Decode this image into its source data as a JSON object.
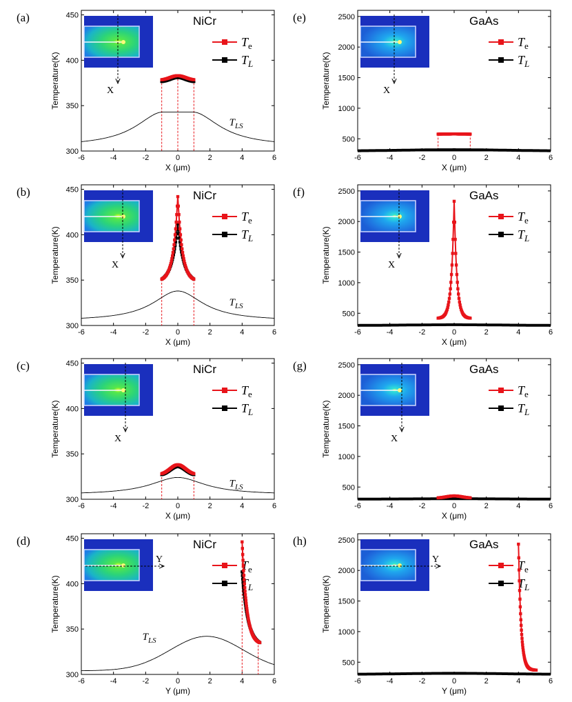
{
  "x_unit_label": "X (μm)",
  "y_unit_label": "Y (μm)",
  "ylabel": "Temperature(K)",
  "legend": {
    "te": "T",
    "te_sub": "e",
    "tl": "T",
    "tl_sub": "L"
  },
  "tls": {
    "main": "T",
    "sub": "LS"
  },
  "colors": {
    "te": "#e8141a",
    "tl": "#000000",
    "tls": "#000000",
    "guide": "#e8141a"
  },
  "chart_data": [
    {
      "panel": "(a)",
      "material": "NiCr",
      "type": "line",
      "xlabel": "X (μm)",
      "ylabel": "Temperature(K)",
      "xlim": [
        -6,
        6
      ],
      "ylim": [
        300,
        455
      ],
      "xticks": [
        -6,
        -4,
        -2,
        0,
        2,
        4,
        6
      ],
      "yticks": [
        300,
        350,
        400,
        450
      ],
      "inset_axis": "X",
      "inset_axis_vertical": true,
      "inset_scheme": "nicr",
      "inset_cut": -0.4,
      "guides": [
        -1,
        0,
        1
      ],
      "tls": {
        "type": "bell",
        "base": 305,
        "peak": 343,
        "flat": 0.9,
        "width": 2.6,
        "label_x": 3.2,
        "label_y": 328
      },
      "series": [
        {
          "name": "Te",
          "shape": "bump",
          "x0": -1,
          "x1": 1,
          "base": 378,
          "peak": 383
        },
        {
          "name": "TL",
          "shape": "bump",
          "x0": -1,
          "x1": 1,
          "base": 376,
          "peak": 381
        }
      ]
    },
    {
      "panel": "(b)",
      "material": "NiCr",
      "type": "line",
      "xlabel": "X (μm)",
      "ylabel": "Temperature(K)",
      "xlim": [
        -6,
        6
      ],
      "ylim": [
        300,
        455
      ],
      "xticks": [
        -6,
        -4,
        -2,
        0,
        2,
        4,
        6
      ],
      "yticks": [
        300,
        350,
        400,
        450
      ],
      "inset_axis": "X",
      "inset_axis_vertical": true,
      "inset_scheme": "nicr",
      "inset_cut": -0.05,
      "guides": [
        -1,
        1
      ],
      "tls": {
        "type": "bell",
        "base": 305,
        "peak": 338,
        "flat": 0,
        "width": 2.4,
        "label_x": 3.2,
        "label_y": 322
      },
      "series": [
        {
          "name": "Te",
          "shape": "cusp",
          "x0": -1,
          "x1": 1,
          "base": 351,
          "peak": 442,
          "decay": 0.28
        },
        {
          "name": "TL",
          "shape": "cusp",
          "x0": -1,
          "x1": 1,
          "base": 351,
          "peak": 412,
          "decay": 0.36
        }
      ]
    },
    {
      "panel": "(c)",
      "material": "NiCr",
      "type": "line",
      "xlabel": "X (μm)",
      "ylabel": "Temperature(K)",
      "xlim": [
        -6,
        6
      ],
      "ylim": [
        300,
        455
      ],
      "xticks": [
        -6,
        -4,
        -2,
        0,
        2,
        4,
        6
      ],
      "yticks": [
        300,
        350,
        400,
        450
      ],
      "inset_axis": "X",
      "inset_axis_vertical": true,
      "inset_scheme": "nicr",
      "inset_cut": 0.15,
      "guides": [
        -1,
        1
      ],
      "tls": {
        "type": "bell",
        "base": 305,
        "peak": 324,
        "flat": 0,
        "width": 2.6,
        "label_x": 3.2,
        "label_y": 314
      },
      "series": [
        {
          "name": "Te",
          "shape": "bump",
          "x0": -1,
          "x1": 1,
          "base": 327,
          "peak": 338
        },
        {
          "name": "TL",
          "shape": "bump",
          "x0": -1,
          "x1": 1,
          "base": 326,
          "peak": 336
        }
      ]
    },
    {
      "panel": "(d)",
      "material": "NiCr",
      "type": "line",
      "xlabel": "Y (μm)",
      "ylabel": "Temperature(K)",
      "xlim": [
        -6,
        6
      ],
      "ylim": [
        300,
        455
      ],
      "xticks": [
        -6,
        -4,
        -2,
        0,
        2,
        4,
        6
      ],
      "yticks": [
        300,
        350,
        400,
        450
      ],
      "inset_axis": "Y",
      "inset_axis_vertical": false,
      "inset_scheme": "nicr",
      "inset_cut": 0,
      "guides": [
        4,
        5
      ],
      "tls": {
        "type": "plateau",
        "base": 304,
        "peak": 342,
        "center": 1.8,
        "width": 3.2,
        "label_x": -2.2,
        "label_y": 338
      },
      "series": [
        {
          "name": "Te",
          "shape": "decay",
          "x0": 4,
          "x1": 5.1,
          "base": 335,
          "peak": 446,
          "decay": 0.28
        },
        {
          "name": "TL",
          "shape": "decay",
          "x0": 4,
          "x1": 5.1,
          "base": 335,
          "peak": 413,
          "decay": 0.36
        }
      ]
    },
    {
      "panel": "(e)",
      "material": "GaAs",
      "type": "line",
      "xlabel": "X (μm)",
      "ylabel": "Temperature(K)",
      "xlim": [
        -6,
        6
      ],
      "ylim": [
        300,
        2600
      ],
      "xticks": [
        -6,
        -4,
        -2,
        0,
        2,
        4,
        6
      ],
      "yticks": [
        500,
        1000,
        1500,
        2000,
        2500
      ],
      "inset_axis": "X",
      "inset_axis_vertical": true,
      "inset_scheme": "gaas",
      "inset_cut": -0.4,
      "guides": [
        -1,
        1
      ],
      "tls": null,
      "series": [
        {
          "name": "Te",
          "shape": "flat",
          "x0": -1,
          "x1": 1,
          "base": 575,
          "peak": 578
        },
        {
          "name": "TL",
          "shape": "wide",
          "x0": -6,
          "x1": 6,
          "base": 302,
          "peak": 322
        }
      ]
    },
    {
      "panel": "(f)",
      "material": "GaAs",
      "type": "line",
      "xlabel": "X (μm)",
      "ylabel": "Temperature(K)",
      "xlim": [
        -6,
        6
      ],
      "ylim": [
        300,
        2600
      ],
      "xticks": [
        -6,
        -4,
        -2,
        0,
        2,
        4,
        6
      ],
      "yticks": [
        500,
        1000,
        1500,
        2000,
        2500
      ],
      "inset_axis": "X",
      "inset_axis_vertical": true,
      "inset_scheme": "gaas",
      "inset_cut": -0.05,
      "guides": [],
      "tls": null,
      "series": [
        {
          "name": "Te",
          "shape": "cusp",
          "x0": -1,
          "x1": 1,
          "base": 420,
          "peak": 2330,
          "decay": 0.17
        },
        {
          "name": "TL",
          "shape": "wide",
          "x0": -6,
          "x1": 6,
          "base": 300,
          "peak": 312
        }
      ]
    },
    {
      "panel": "(g)",
      "material": "GaAs",
      "type": "line",
      "xlabel": "X (μm)",
      "ylabel": "Temperature(K)",
      "xlim": [
        -6,
        6
      ],
      "ylim": [
        300,
        2600
      ],
      "xticks": [
        -6,
        -4,
        -2,
        0,
        2,
        4,
        6
      ],
      "yticks": [
        500,
        1000,
        1500,
        2000,
        2500
      ],
      "inset_axis": "X",
      "inset_axis_vertical": true,
      "inset_scheme": "gaas",
      "inset_cut": 0.15,
      "guides": [],
      "tls": null,
      "series": [
        {
          "name": "Te",
          "shape": "bump",
          "x0": -1,
          "x1": 1,
          "base": 320,
          "peak": 355
        },
        {
          "name": "TL",
          "shape": "wide",
          "x0": -6,
          "x1": 6,
          "base": 302,
          "peak": 308
        }
      ]
    },
    {
      "panel": "(h)",
      "material": "GaAs",
      "type": "line",
      "xlabel": "Y (μm)",
      "ylabel": "Temperature(K)",
      "xlim": [
        -6,
        6
      ],
      "ylim": [
        300,
        2600
      ],
      "xticks": [
        -6,
        -4,
        -2,
        0,
        2,
        4,
        6
      ],
      "yticks": [
        500,
        1000,
        1500,
        2000,
        2500
      ],
      "inset_axis": "Y",
      "inset_axis_vertical": false,
      "inset_scheme": "gaas",
      "inset_cut": 0,
      "guides": [],
      "tls": null,
      "series": [
        {
          "name": "Te",
          "shape": "decay",
          "x0": 4,
          "x1": 5.1,
          "base": 370,
          "peak": 2430,
          "decay": 0.16
        },
        {
          "name": "TL",
          "shape": "wide",
          "x0": -6,
          "x1": 6,
          "base": 302,
          "peak": 318
        }
      ]
    }
  ]
}
